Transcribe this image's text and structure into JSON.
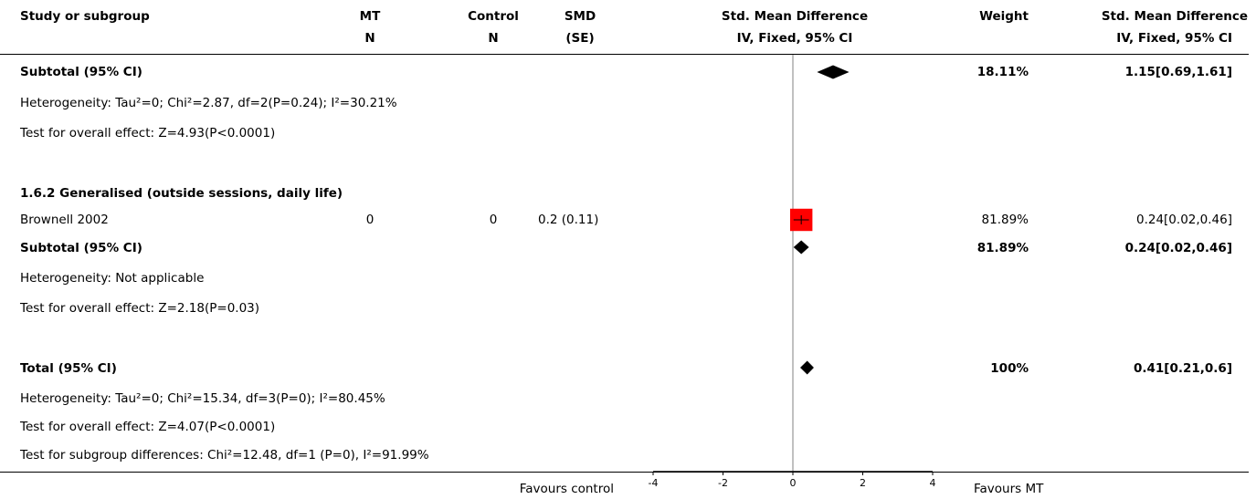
{
  "header": {
    "study": "Study or subgroup",
    "mt": "MT",
    "mt_n": "N",
    "control": "Control",
    "control_n": "N",
    "smd": "SMD",
    "smd_se": "(SE)",
    "forest": "Std. Mean Difference",
    "forest_sub": "IV, Fixed, 95% CI",
    "weight": "Weight",
    "effect": "Std. Mean Difference",
    "effect_sub": "IV, Fixed, 95% CI"
  },
  "rows": {
    "subtotal1": {
      "label": "Subtotal (95% CI)",
      "weight": "18.11%",
      "ci": "1.15[0.69,1.61]"
    },
    "het1": "Heterogeneity: Tau²=0; Chi²=2.87, df=2(P=0.24); I²=30.21%",
    "test1": "Test for overall effect: Z=4.93(P<0.0001)",
    "group2": "1.6.2 Generalised (outside sessions, daily life)",
    "study1": {
      "label": "Brownell 2002",
      "mt_n": "0",
      "control_n": "0",
      "smd": "0.2 (0.11)",
      "weight": "81.89%",
      "ci": "0.24[0.02,0.46]"
    },
    "subtotal2": {
      "label": "Subtotal (95% CI)",
      "weight": "81.89%",
      "ci": "0.24[0.02,0.46]"
    },
    "het2": "Heterogeneity: Not applicable",
    "test2": "Test for overall effect: Z=2.18(P=0.03)",
    "total": {
      "label": "Total (95% CI)",
      "weight": "100%",
      "ci": "0.41[0.21,0.6]"
    },
    "het3": "Heterogeneity: Tau²=0; Chi²=15.34, df=3(P=0); I²=80.45%",
    "test3": "Test for overall effect: Z=4.07(P<0.0001)",
    "subgroup": "Test for subgroup differences: Chi²=12.48, df=1 (P=0), I²=91.99%"
  },
  "footer": {
    "favours_left": "Favours control",
    "favours_right": "Favours MT"
  },
  "colors": {
    "study_box": "#ff0000",
    "diamond": "#000000",
    "axis": "#000000",
    "zero_line": "#808080"
  },
  "chart_data": {
    "type": "forest",
    "xlim": [
      -4,
      4
    ],
    "xticks": [
      -4,
      -2,
      0,
      2,
      4
    ],
    "grid": false,
    "studies": [
      {
        "name": "Brownell 2002",
        "estimate": 0.24,
        "lower": 0.02,
        "upper": 0.46,
        "weight": 81.89
      }
    ],
    "pooled": [
      {
        "name": "Subtotal (95% CI)",
        "estimate": 1.15,
        "lower": 0.69,
        "upper": 1.61,
        "weight": 18.11
      },
      {
        "name": "Subtotal (95% CI)",
        "estimate": 0.24,
        "lower": 0.02,
        "upper": 0.46,
        "weight": 81.89
      },
      {
        "name": "Total (95% CI)",
        "estimate": 0.41,
        "lower": 0.21,
        "upper": 0.6,
        "weight": 100
      }
    ]
  }
}
